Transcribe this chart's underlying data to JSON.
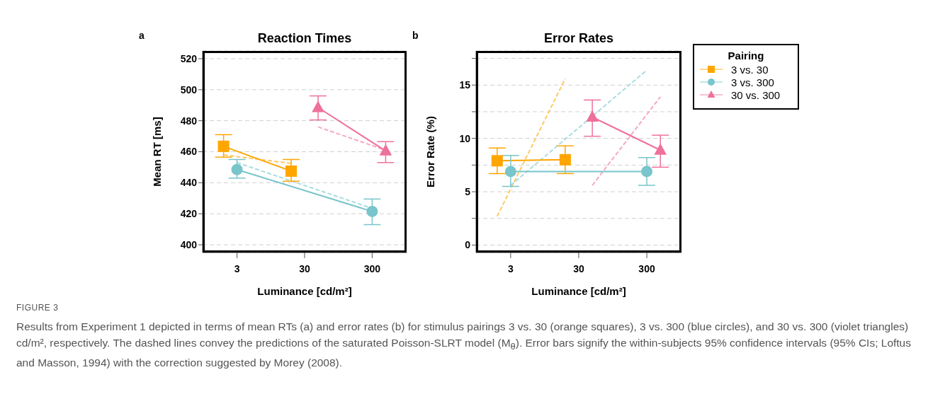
{
  "chart_data": [
    {
      "type": "line",
      "title": "Reaction Times",
      "xlabel": "Luminance [cd/m²]",
      "ylabel": "Mean RT [ms]",
      "log": "x",
      "grid": "y",
      "legend": false,
      "xlim": [
        0.93,
        970
      ],
      "xticks": [
        3,
        30,
        300
      ],
      "ylim": [
        395,
        525
      ],
      "yticks": [
        400,
        420,
        440,
        460,
        480,
        500,
        520
      ],
      "annotations": [
        "a"
      ],
      "series": [
        {
          "type": "line",
          "color": "#ffc966",
          "line_style": "dashed",
          "marker": "none",
          "x": [
            1.9,
            19
          ],
          "values": [
            458,
            452.5
          ]
        },
        {
          "type": "line",
          "color": "#a8dde0",
          "line_style": "dashed",
          "marker": "none",
          "x": [
            3,
            300
          ],
          "values": [
            453,
            423.5
          ]
        },
        {
          "type": "line",
          "color": "#f5a8c4",
          "line_style": "dashed",
          "marker": "none",
          "x": [
            47.5,
            475
          ],
          "values": [
            476,
            461
          ]
        },
        {
          "type": "line",
          "color": "#ffa500",
          "line_style": "solid",
          "marker": "square",
          "x": [
            1.9,
            19
          ],
          "values": [
            463.5,
            447.5
          ],
          "errors": [
            [
              456.5,
              471
            ],
            [
              441,
              455
            ]
          ]
        },
        {
          "type": "line",
          "color": "#78c5cb",
          "line_style": "solid",
          "marker": "circle",
          "x": [
            3,
            300
          ],
          "values": [
            448.5,
            421.5
          ],
          "errors": [
            [
              443,
              455
            ],
            [
              413,
              429.5
            ]
          ]
        },
        {
          "type": "line",
          "color": "#ee7199",
          "line_style": "solid",
          "marker": "triangle",
          "x": [
            47.5,
            475
          ],
          "values": [
            488.5,
            460.5
          ],
          "errors": [
            [
              480.5,
              496
            ],
            [
              453,
              466.5
            ]
          ]
        }
      ]
    },
    {
      "type": "line",
      "title": "Error Rates",
      "xlabel": "Luminance [cd/m²]",
      "ylabel": "Error Rate (%)",
      "log": "x",
      "grid": "y",
      "legend": "right",
      "legend_title": "Pairing",
      "xlim": [
        0.93,
        970
      ],
      "xticks": [
        3,
        30,
        300
      ],
      "ylim": [
        -0.7,
        18.2
      ],
      "yticks": [
        0,
        {
          "value": 2.5,
          "label": null
        },
        5,
        {
          "value": 7.5,
          "label": null
        },
        10,
        {
          "value": 12.5,
          "label": null
        },
        15,
        {
          "value": 17.5,
          "label": null
        }
      ],
      "annotations": [
        "b",
        "FIGURE 3",
        "Results from Experiment 1 depicted in terms of mean RTs (a) and error rates (b) for stimulus pairings 3 vs. 30 (orange squares), 3 vs. 300 (blue circles), and 30 vs. 300 (violet triangles) cd/m², respectively. The dashed lines convey the predictions of the saturated Poisson-SLRT model (M$_{θ}$). Error bars signify the within-subjects 95% confidence intervals (95% CIs; Loftus and Masson, 1994) with the correction suggested by Morey (2008)."
      ],
      "series": [
        {
          "type": "line",
          "color": "#ffc966",
          "line_style": "dashed",
          "marker": "none",
          "x": [
            1.9,
            19
          ],
          "values": [
            2.7,
            15.6
          ]
        },
        {
          "type": "line",
          "color": "#a8dde0",
          "line_style": "dashed",
          "marker": "none",
          "x": [
            3,
            300
          ],
          "values": [
            5.6,
            16.4
          ]
        },
        {
          "type": "line",
          "color": "#f5a8c4",
          "line_style": "dashed",
          "marker": "none",
          "x": [
            47.5,
            475
          ],
          "values": [
            5.6,
            13.9
          ]
        },
        {
          "name": "3 vs. 30",
          "type": "line",
          "color": "#ffa500",
          "line_style": "solid",
          "marker": "square",
          "x": [
            1.9,
            19
          ],
          "values": [
            7.9,
            8.0
          ],
          "errors": [
            [
              6.7,
              9.1
            ],
            [
              6.7,
              9.3
            ]
          ]
        },
        {
          "name": "3 vs. 300",
          "type": "line",
          "color": "#78c5cb",
          "line_style": "solid",
          "marker": "circle",
          "x": [
            3,
            300
          ],
          "values": [
            6.9,
            6.9
          ],
          "errors": [
            [
              5.5,
              8.4
            ],
            [
              5.6,
              8.2
            ]
          ]
        },
        {
          "name": "30 vs. 300",
          "type": "line",
          "color": "#ee7199",
          "line_style": "solid",
          "marker": "triangle",
          "x": [
            47.5,
            475
          ],
          "values": [
            12.0,
            8.9
          ],
          "errors": [
            [
              10.2,
              13.6
            ],
            [
              7.3,
              10.3
            ]
          ]
        }
      ]
    }
  ]
}
